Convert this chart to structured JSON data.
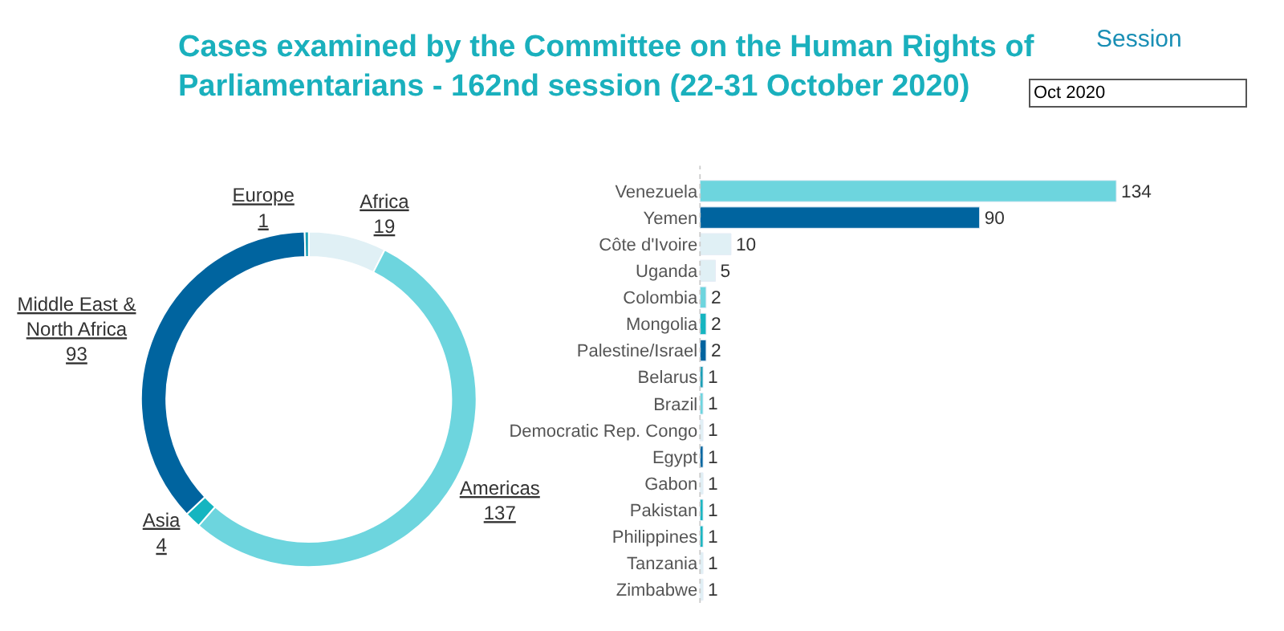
{
  "chart_data": [
    {
      "type": "donut",
      "title": "Cases examined by the Committee on the Human Rights of Parliamentarians - 162nd session (22-31 October 2020)",
      "annotations": [
        "Session",
        "Oct 2020"
      ],
      "categories": [
        "Africa",
        "Americas",
        "Asia",
        "Middle East &\nNorth Africa",
        "Europe"
      ],
      "values": [
        19,
        137,
        4,
        93,
        1
      ],
      "colors": [
        "#e0f0f5",
        "#6dd5de",
        "#15b5c0",
        "#00649f",
        "#1a9fb5"
      ],
      "data_labels": true,
      "legend": false
    },
    {
      "type": "bar",
      "orientation": "horizontal",
      "categories": [
        "Venezuela",
        "Yemen",
        "Côte d'Ivoire",
        "Uganda",
        "Colombia",
        "Mongolia",
        "Palestine/Israel",
        "Belarus",
        "Brazil",
        "Democratic Rep. Congo",
        "Egypt",
        "Gabon",
        "Pakistan",
        "Philippines",
        "Tanzania",
        "Zimbabwe"
      ],
      "values": [
        134,
        90,
        10,
        5,
        2,
        2,
        2,
        1,
        1,
        1,
        1,
        1,
        1,
        1,
        1,
        1
      ],
      "colors": [
        "#6dd5de",
        "#00649f",
        "#e0f0f5",
        "#e0f0f5",
        "#6dd5de",
        "#15b5c0",
        "#00649f",
        "#1a9fb5",
        "#6dd5de",
        "#e0f0f5",
        "#00649f",
        "#e0f0f5",
        "#15b5c0",
        "#15b5c0",
        "#e0f0f5",
        "#e0f0f5"
      ],
      "data_labels": true,
      "legend": false
    }
  ]
}
